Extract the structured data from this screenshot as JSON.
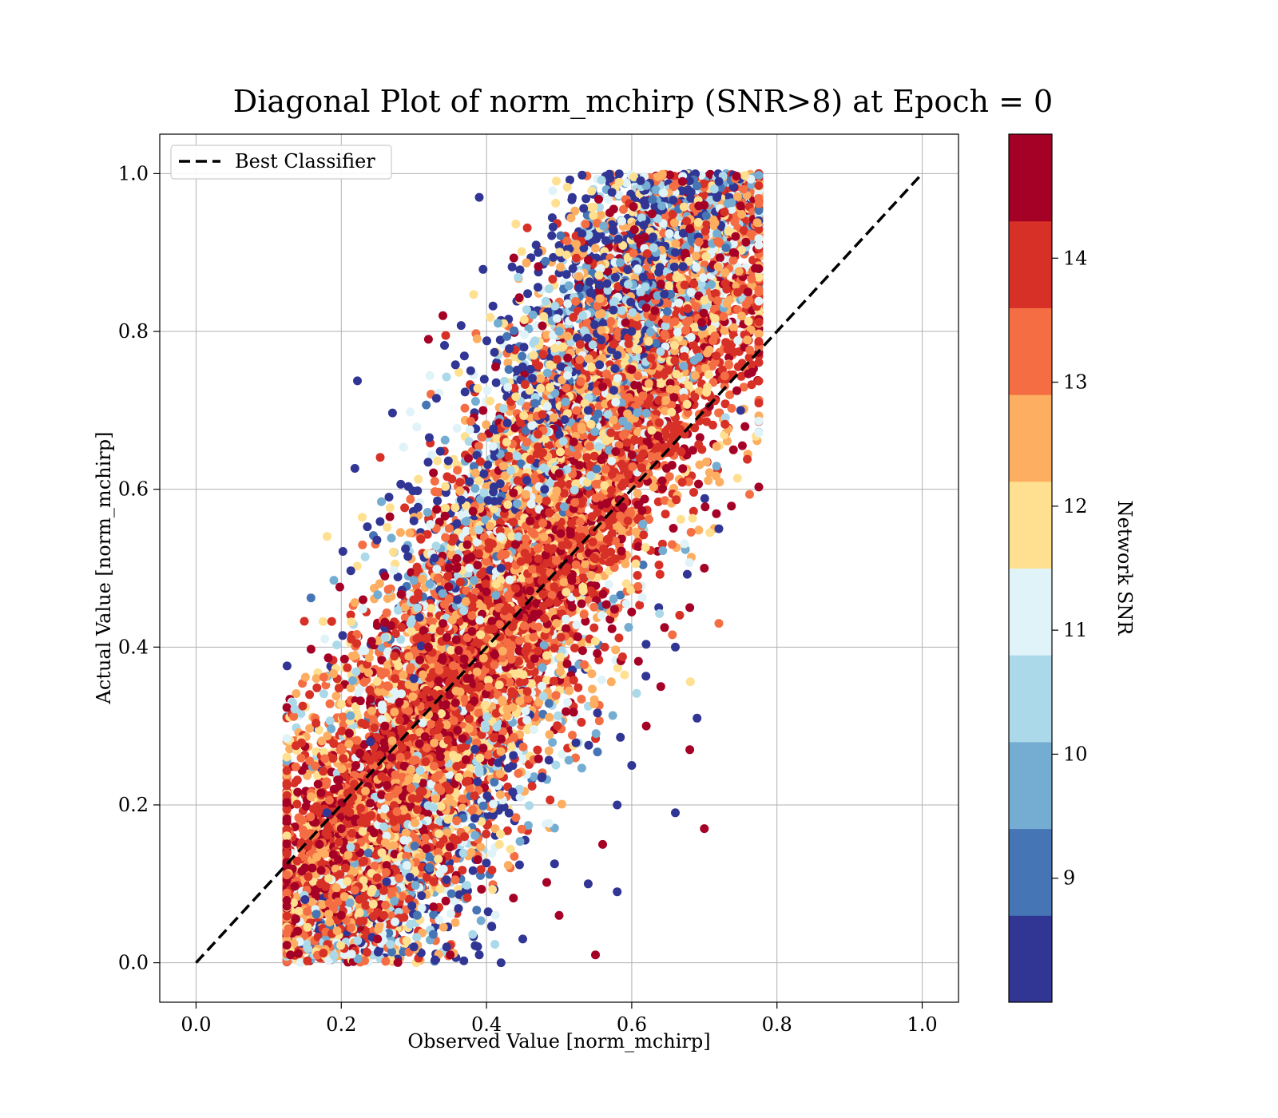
{
  "chart_data": {
    "type": "scatter",
    "title": "Diagonal Plot of norm_mchirp (SNR>8) at Epoch = 0",
    "xlabel": "Observed Value [norm_mchirp]",
    "ylabel": "Actual Value [norm_mchirp]",
    "xlim": [
      -0.05,
      1.05
    ],
    "ylim": [
      -0.05,
      1.05
    ],
    "xticks": [
      "0.0",
      "0.2",
      "0.4",
      "0.6",
      "0.8",
      "1.0"
    ],
    "yticks": [
      "0.0",
      "0.2",
      "0.4",
      "0.6",
      "0.8",
      "1.0"
    ],
    "grid": true,
    "legend": {
      "placement": "top-left",
      "entries": [
        "Best Classifier"
      ]
    },
    "reference_line": {
      "name": "Best Classifier",
      "style": "dashed",
      "color": "#000000",
      "x": [
        0.0,
        1.0
      ],
      "y": [
        0.0,
        1.0
      ]
    },
    "colorbar": {
      "label": "Network SNR",
      "range": [
        8,
        15
      ],
      "ticks": [
        "9",
        "10",
        "11",
        "12",
        "13",
        "14"
      ],
      "bins": 10,
      "colors": [
        "#313695",
        "#4575b4",
        "#74add1",
        "#abd9e9",
        "#e0f3f8",
        "#fee090",
        "#fdae61",
        "#f46d43",
        "#d73027",
        "#a50026"
      ]
    },
    "point_count_estimate": 12000,
    "cloud_description": "points concentrated around the diagonal; observed values span roughly 0.13–0.77, actual values span 0.0–1.0; dominant colors are the highest SNR bins",
    "series": [
      {
        "name": "",
        "points": [
          [
            0.13,
            0.01
          ],
          [
            0.14,
            0.04
          ],
          [
            0.15,
            0.08
          ],
          [
            0.16,
            0.12
          ],
          [
            0.17,
            0.15
          ],
          [
            0.18,
            0.19
          ],
          [
            0.19,
            0.22
          ],
          [
            0.2,
            0.17
          ],
          [
            0.22,
            0.25
          ],
          [
            0.24,
            0.28
          ],
          [
            0.26,
            0.3
          ],
          [
            0.28,
            0.33
          ],
          [
            0.3,
            0.36
          ],
          [
            0.32,
            0.4
          ],
          [
            0.34,
            0.43
          ],
          [
            0.36,
            0.46
          ],
          [
            0.38,
            0.42
          ],
          [
            0.4,
            0.47
          ],
          [
            0.42,
            0.5
          ],
          [
            0.44,
            0.53
          ],
          [
            0.46,
            0.56
          ],
          [
            0.48,
            0.6
          ],
          [
            0.5,
            0.62
          ],
          [
            0.52,
            0.66
          ],
          [
            0.54,
            0.7
          ],
          [
            0.56,
            0.73
          ],
          [
            0.58,
            0.77
          ],
          [
            0.6,
            0.8
          ],
          [
            0.62,
            0.83
          ],
          [
            0.64,
            0.86
          ],
          [
            0.66,
            0.9
          ],
          [
            0.68,
            0.93
          ],
          [
            0.7,
            0.96
          ],
          [
            0.72,
            0.99
          ],
          [
            0.74,
            0.9
          ],
          [
            0.76,
            0.85
          ],
          [
            0.75,
            0.7
          ],
          [
            0.74,
            0.65
          ],
          [
            0.72,
            0.55
          ],
          [
            0.7,
            0.5
          ],
          [
            0.68,
            0.45
          ],
          [
            0.66,
            0.4
          ],
          [
            0.64,
            0.35
          ],
          [
            0.62,
            0.3
          ],
          [
            0.6,
            0.25
          ],
          [
            0.58,
            0.2
          ],
          [
            0.56,
            0.15
          ],
          [
            0.54,
            0.1
          ],
          [
            0.5,
            0.06
          ],
          [
            0.45,
            0.03
          ],
          [
            0.42,
            0.0
          ],
          [
            0.39,
            0.01
          ],
          [
            0.35,
            0.01
          ],
          [
            0.3,
            0.02
          ],
          [
            0.25,
            0.03
          ],
          [
            0.2,
            0.06
          ],
          [
            0.39,
            0.97
          ],
          [
            0.34,
            0.82
          ],
          [
            0.32,
            0.79
          ],
          [
            0.3,
            0.56
          ],
          [
            0.23,
            0.46
          ],
          [
            0.26,
            0.49
          ],
          [
            0.55,
            0.01
          ],
          [
            0.58,
            0.09
          ],
          [
            0.66,
            0.19
          ],
          [
            0.7,
            0.17
          ],
          [
            0.77,
            0.88
          ],
          [
            0.68,
            0.27
          ],
          [
            0.69,
            0.31
          ],
          [
            0.67,
            0.99
          ]
        ]
      }
    ]
  }
}
